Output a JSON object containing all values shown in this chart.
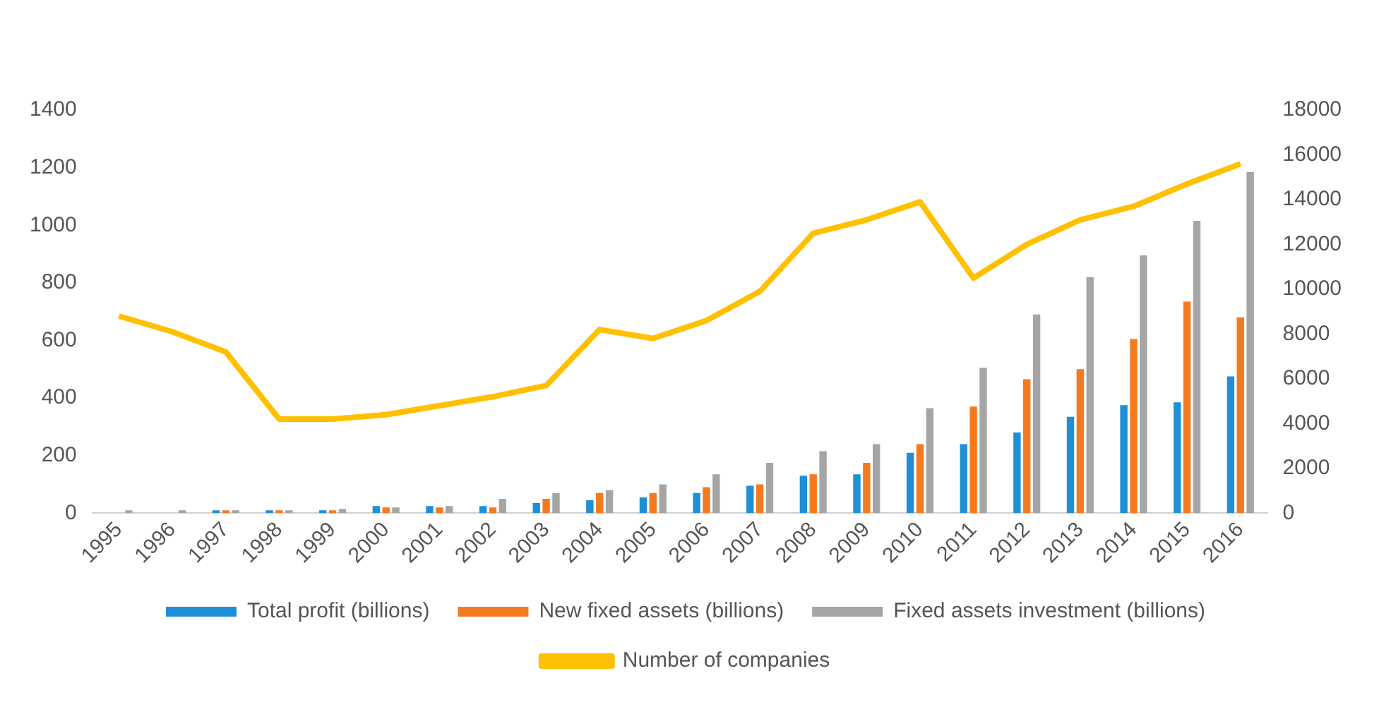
{
  "chart_data": {
    "type": "bar",
    "categories": [
      "1995",
      "1996",
      "1997",
      "1998",
      "1999",
      "2000",
      "2001",
      "2002",
      "2003",
      "2004",
      "2005",
      "2006",
      "2007",
      "2008",
      "2009",
      "2010",
      "2011",
      "2012",
      "2013",
      "2014",
      "2015",
      "2016"
    ],
    "series": [
      {
        "name": "Total profit (billions)",
        "color": "#1f8fd8",
        "values": [
          null,
          null,
          10,
          10,
          10,
          25,
          25,
          25,
          35,
          45,
          55,
          70,
          95,
          130,
          135,
          210,
          240,
          280,
          335,
          375,
          385,
          475
        ]
      },
      {
        "name": "New fixed assets (billions)",
        "color": "#f47a20",
        "values": [
          null,
          null,
          10,
          10,
          10,
          20,
          20,
          20,
          50,
          70,
          70,
          90,
          100,
          135,
          175,
          240,
          370,
          465,
          500,
          605,
          735,
          680
        ]
      },
      {
        "name": "Fixed assets investment (billions)",
        "color": "#a5a5a5",
        "values": [
          10,
          10,
          10,
          10,
          15,
          20,
          25,
          50,
          70,
          80,
          100,
          135,
          175,
          215,
          240,
          365,
          505,
          690,
          820,
          895,
          1015,
          1185
        ]
      },
      {
        "name": "Number of companies",
        "type": "line",
        "axis": "y2",
        "color": "#ffc000",
        "values": [
          8800,
          8100,
          7200,
          4200,
          4200,
          4400,
          4800,
          5200,
          5700,
          8200,
          7800,
          8600,
          9900,
          12500,
          13100,
          13900,
          10500,
          12000,
          13100,
          13700,
          14700,
          15600
        ]
      }
    ],
    "ylim": [
      0,
      1400
    ],
    "yticks": [
      0,
      200,
      400,
      600,
      800,
      1000,
      1200,
      1400
    ],
    "y2lim": [
      0,
      18000
    ],
    "y2ticks": [
      0,
      2000,
      4000,
      6000,
      8000,
      10000,
      12000,
      14000,
      16000,
      18000
    ],
    "grid": false,
    "legend": "bottom",
    "marker": "none"
  }
}
